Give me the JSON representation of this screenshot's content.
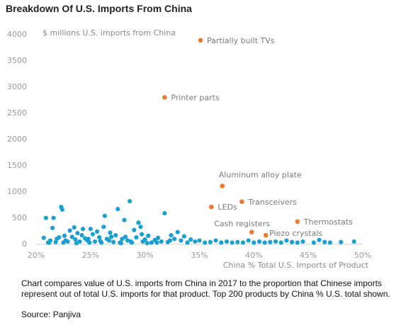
{
  "title": "Breakdown Of U.S. Imports From China",
  "caption": "Chart compares value of U.S. imports from China in 2017 to the proportion that Chinese imports represent out of total U.S. imports for that product. Top 200 products by China % U.S. total shown.",
  "source": "Source: Panjiva",
  "colors": {
    "blue": "#1a9fd1",
    "orange": "#ee7a2f",
    "axis": "#cfcfcf"
  },
  "chart_data": {
    "type": "scatter",
    "ylabel": "$ millions U.S. imports from China",
    "xlabel": "China % Total U.S. Imports of Product",
    "xlim": [
      0.2,
      0.5
    ],
    "ylim": [
      0,
      4000
    ],
    "xticks": [
      0.2,
      0.25,
      0.3,
      0.35,
      0.4,
      0.45,
      0.5
    ],
    "xtick_labels": [
      "20%",
      "25%",
      "30%",
      "35%",
      "40%",
      "45%",
      "50%"
    ],
    "yticks": [
      0,
      500,
      1000,
      1500,
      2000,
      2500,
      3000,
      3500,
      4000
    ],
    "ytick_labels": [
      "0",
      "500",
      "1000",
      "1500",
      "2000",
      "2500",
      "3000",
      "3500",
      "4000"
    ],
    "grid": false,
    "highlighted": [
      {
        "label": "Partially built TVs",
        "x": 0.351,
        "y": 3880
      },
      {
        "label": "Printer parts",
        "x": 0.318,
        "y": 2790
      },
      {
        "label": "Aluminum alloy plate",
        "x": 0.371,
        "y": 1100
      },
      {
        "label": "LEDs",
        "x": 0.361,
        "y": 700
      },
      {
        "label": "Transceivers",
        "x": 0.389,
        "y": 800
      },
      {
        "label": "Thermostats",
        "x": 0.44,
        "y": 420
      },
      {
        "label": "Cash registers",
        "x": 0.398,
        "y": 220
      },
      {
        "label": "Piezo crystals",
        "x": 0.411,
        "y": 160
      }
    ],
    "points": [
      [
        0.207,
        110
      ],
      [
        0.209,
        490
      ],
      [
        0.211,
        20
      ],
      [
        0.213,
        60
      ],
      [
        0.215,
        300
      ],
      [
        0.216,
        490
      ],
      [
        0.218,
        30
      ],
      [
        0.219,
        90
      ],
      [
        0.221,
        120
      ],
      [
        0.223,
        700
      ],
      [
        0.224,
        650
      ],
      [
        0.225,
        20
      ],
      [
        0.227,
        60
      ],
      [
        0.229,
        40
      ],
      [
        0.231,
        250
      ],
      [
        0.233,
        130
      ],
      [
        0.235,
        310
      ],
      [
        0.236,
        80
      ],
      [
        0.238,
        200
      ],
      [
        0.24,
        40
      ],
      [
        0.242,
        160
      ],
      [
        0.243,
        280
      ],
      [
        0.245,
        100
      ],
      [
        0.247,
        60
      ],
      [
        0.249,
        20
      ],
      [
        0.25,
        280
      ],
      [
        0.252,
        180
      ],
      [
        0.254,
        40
      ],
      [
        0.256,
        230
      ],
      [
        0.258,
        120
      ],
      [
        0.26,
        20
      ],
      [
        0.262,
        320
      ],
      [
        0.263,
        530
      ],
      [
        0.265,
        90
      ],
      [
        0.267,
        60
      ],
      [
        0.269,
        130
      ],
      [
        0.271,
        30
      ],
      [
        0.273,
        160
      ],
      [
        0.275,
        660
      ],
      [
        0.277,
        20
      ],
      [
        0.279,
        90
      ],
      [
        0.281,
        450
      ],
      [
        0.282,
        130
      ],
      [
        0.284,
        60
      ],
      [
        0.286,
        810
      ],
      [
        0.288,
        20
      ],
      [
        0.29,
        260
      ],
      [
        0.292,
        120
      ],
      [
        0.294,
        400
      ],
      [
        0.296,
        320
      ],
      [
        0.298,
        40
      ],
      [
        0.3,
        80
      ],
      [
        0.303,
        150
      ],
      [
        0.306,
        20
      ],
      [
        0.309,
        70
      ],
      [
        0.312,
        110
      ],
      [
        0.315,
        40
      ],
      [
        0.318,
        580
      ],
      [
        0.321,
        30
      ],
      [
        0.324,
        160
      ],
      [
        0.327,
        90
      ],
      [
        0.33,
        220
      ],
      [
        0.333,
        60
      ],
      [
        0.336,
        140
      ],
      [
        0.339,
        20
      ],
      [
        0.342,
        80
      ],
      [
        0.346,
        40
      ],
      [
        0.35,
        60
      ],
      [
        0.355,
        20
      ],
      [
        0.36,
        30
      ],
      [
        0.365,
        60
      ],
      [
        0.37,
        20
      ],
      [
        0.375,
        40
      ],
      [
        0.38,
        20
      ],
      [
        0.385,
        30
      ],
      [
        0.39,
        20
      ],
      [
        0.395,
        60
      ],
      [
        0.4,
        20
      ],
      [
        0.405,
        40
      ],
      [
        0.41,
        20
      ],
      [
        0.415,
        30
      ],
      [
        0.42,
        40
      ],
      [
        0.425,
        20
      ],
      [
        0.43,
        60
      ],
      [
        0.435,
        30
      ],
      [
        0.44,
        20
      ],
      [
        0.445,
        40
      ],
      [
        0.455,
        20
      ],
      [
        0.46,
        70
      ],
      [
        0.465,
        30
      ],
      [
        0.47,
        20
      ],
      [
        0.48,
        30
      ],
      [
        0.492,
        40
      ],
      [
        0.212,
        20
      ],
      [
        0.226,
        150
      ],
      [
        0.237,
        10
      ],
      [
        0.248,
        90
      ],
      [
        0.259,
        50
      ],
      [
        0.268,
        210
      ],
      [
        0.278,
        10
      ],
      [
        0.287,
        40
      ],
      [
        0.297,
        180
      ],
      [
        0.302,
        10
      ],
      [
        0.311,
        20
      ],
      [
        0.323,
        60
      ]
    ]
  }
}
